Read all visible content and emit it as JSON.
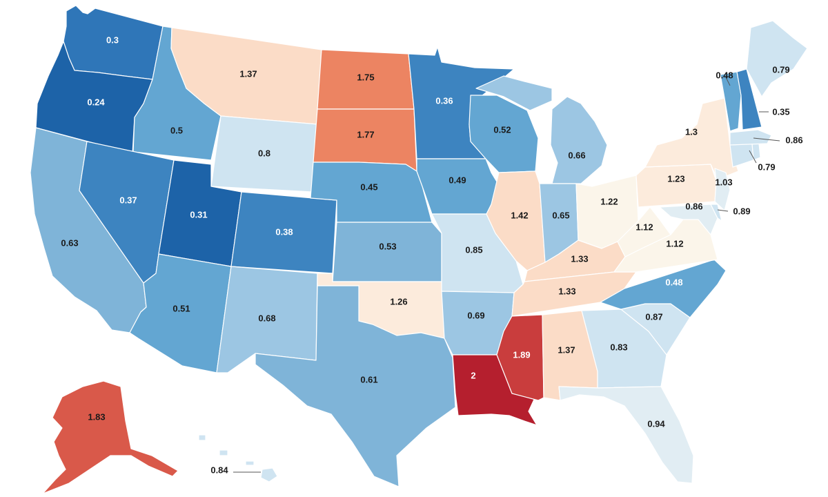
{
  "colors": {
    "dark_blue": "#1d63a8",
    "blue": "#2f76b8",
    "mid_blue": "#3d84c0",
    "light_blue": "#63a6d2",
    "lighter_blue": "#7fb4d8",
    "pale_blue": "#9cc6e3",
    "very_pale_blue": "#cfe4f1",
    "ice": "#e1edf3",
    "cream": "#fbf5ea",
    "pale_peach": "#fcebdc",
    "peach": "#fbdcc7",
    "salmon": "#ec8462",
    "red": "#d9594a",
    "red2": "#c93d3d",
    "dark_red": "#b51f2e"
  },
  "states": [
    {
      "id": "WA",
      "label": "0.3"
    },
    {
      "id": "OR",
      "label": "0.24"
    },
    {
      "id": "CA",
      "label": "0.63"
    },
    {
      "id": "ID",
      "label": "0.5"
    },
    {
      "id": "NV",
      "label": "0.37"
    },
    {
      "id": "MT",
      "label": "1.37"
    },
    {
      "id": "WY",
      "label": "0.8"
    },
    {
      "id": "UT",
      "label": "0.31"
    },
    {
      "id": "AZ",
      "label": "0.51"
    },
    {
      "id": "CO",
      "label": "0.38"
    },
    {
      "id": "NM",
      "label": "0.68"
    },
    {
      "id": "ND",
      "label": "1.75"
    },
    {
      "id": "SD",
      "label": "1.77"
    },
    {
      "id": "NE",
      "label": "0.45"
    },
    {
      "id": "KS",
      "label": "0.53"
    },
    {
      "id": "OK",
      "label": "1.26"
    },
    {
      "id": "TX",
      "label": "0.61"
    },
    {
      "id": "MN",
      "label": "0.36"
    },
    {
      "id": "IA",
      "label": "0.49"
    },
    {
      "id": "MO",
      "label": "0.85"
    },
    {
      "id": "AR",
      "label": "0.69"
    },
    {
      "id": "LA",
      "label": "2"
    },
    {
      "id": "WI",
      "label": "0.52"
    },
    {
      "id": "IL",
      "label": "1.42"
    },
    {
      "id": "MI",
      "label": "0.66"
    },
    {
      "id": "IN",
      "label": "0.65"
    },
    {
      "id": "OH",
      "label": "1.22"
    },
    {
      "id": "KY",
      "label": "1.33"
    },
    {
      "id": "TN",
      "label": "1.33"
    },
    {
      "id": "MS",
      "label": "1.89"
    },
    {
      "id": "AL",
      "label": "1.37"
    },
    {
      "id": "GA",
      "label": "0.83"
    },
    {
      "id": "FL",
      "label": "0.94"
    },
    {
      "id": "SC",
      "label": "0.87"
    },
    {
      "id": "NC",
      "label": "0.48"
    },
    {
      "id": "VA",
      "label": "1.12"
    },
    {
      "id": "WV",
      "label": "1.12"
    },
    {
      "id": "PA",
      "label": "1.23"
    },
    {
      "id": "NY",
      "label": "1.3"
    },
    {
      "id": "NJ",
      "label": "1.03"
    },
    {
      "id": "MD",
      "label": "0.86"
    },
    {
      "id": "DE",
      "label": "0.89"
    },
    {
      "id": "CT",
      "label": "0.79"
    },
    {
      "id": "MA",
      "label": "0.86"
    },
    {
      "id": "VT",
      "label": "0.48"
    },
    {
      "id": "NH",
      "label": "0.35"
    },
    {
      "id": "ME",
      "label": "0.79"
    },
    {
      "id": "AK",
      "label": "1.83"
    },
    {
      "id": "HI",
      "label": "0.84"
    }
  ]
}
